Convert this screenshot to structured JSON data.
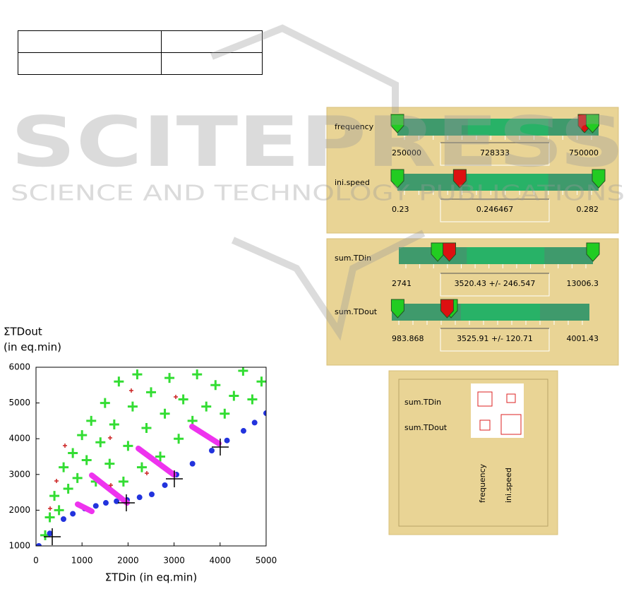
{
  "watermark": {
    "title": "SCITEPRESS",
    "subtitle": "SCIENCE AND TECHNOLOGY PUBLICATIONS"
  },
  "chart_data": {
    "type": "scatter",
    "ylabel": [
      "ΣTDout",
      "(in eq.min)"
    ],
    "xlabel": "ΣTDin (in eq.min)",
    "xlim": [
      0,
      5000
    ],
    "ylim": [
      1000,
      6000
    ],
    "xticks": [
      0,
      1000,
      2000,
      3000,
      4000,
      5000
    ],
    "yticks": [
      1000,
      2000,
      3000,
      4000,
      5000,
      6000
    ],
    "series": [
      {
        "color": "#33dd33",
        "marker": "cross",
        "x": [
          200,
          300,
          400,
          500,
          600,
          700,
          800,
          900,
          1000,
          1100,
          1200,
          1300,
          1400,
          1500,
          1600,
          1700,
          1800,
          1900,
          2000,
          2100,
          2200,
          2300,
          2400,
          2500,
          2700,
          2800,
          2900,
          3100,
          3200,
          3400,
          3500,
          3700,
          3900,
          4100,
          4300,
          4500,
          4700,
          4900
        ],
        "y": [
          1300,
          1800,
          2400,
          2000,
          3200,
          2600,
          3600,
          2900,
          4100,
          3400,
          4500,
          2800,
          3900,
          5000,
          3300,
          4400,
          5600,
          2800,
          3800,
          4900,
          5800,
          3200,
          4300,
          5300,
          3500,
          4700,
          5700,
          4000,
          5100,
          4500,
          5800,
          4900,
          5500,
          4700,
          5200,
          5900,
          5100,
          5600
        ]
      },
      {
        "color": "#2233dd",
        "marker": "dot",
        "x": [
          61,
          300,
          598,
          800,
          1058,
          1300,
          1518,
          1750,
          1979,
          2250,
          2515,
          2800,
          3052,
          3400,
          3819,
          4150,
          4509,
          4750,
          5000
        ],
        "y": [
          1000,
          1350,
          1751,
          1900,
          2047,
          2120,
          2205,
          2250,
          2285,
          2360,
          2443,
          2700,
          2996,
          3300,
          3668,
          3950,
          4221,
          4450,
          4715
        ]
      },
      {
        "color": "#ee33ee",
        "marker": "line",
        "x": [
          905,
          1212,
          null,
          1212,
          1979,
          null,
          2224,
          2991,
          null,
          3390,
          3972
        ],
        "y": [
          2166,
          1968,
          null,
          2976,
          2205,
          null,
          3727,
          2996,
          null,
          4340,
          3866
        ]
      },
      {
        "color": "#cc2222",
        "marker": "plus",
        "x": [
          307,
          445,
          629,
          2070,
          1610,
          1626,
          2408,
          3037
        ],
        "y": [
          2047,
          2818,
          3806,
          5348,
          4024,
          2700,
          3036,
          5170
        ]
      },
      {
        "color": "#000000",
        "marker": "bigcross",
        "x": [
          353,
          1963,
          3006,
          4003
        ],
        "y": [
          1257,
          2205,
          2877,
          3767
        ]
      }
    ]
  },
  "slider_panels": [
    [
      {
        "label": "frequency",
        "min": "250000",
        "value": "728333",
        "max": "750000"
      },
      {
        "label": "ini.speed",
        "min": "0.23",
        "value": "0.246467",
        "max": "0.282"
      }
    ],
    [
      {
        "label": "sum.TDin",
        "min": "2741",
        "value": "3520.43 +/- 246.547",
        "max": "13006.3"
      },
      {
        "label": "sum.TDout",
        "min": "983.868",
        "value": "3525.91 +/- 120.71",
        "max": "4001.43"
      }
    ]
  ],
  "matrix": {
    "rows": [
      "sum.TDin",
      "sum.TDout"
    ],
    "columns": [
      "frequency",
      "ini.speed"
    ]
  }
}
